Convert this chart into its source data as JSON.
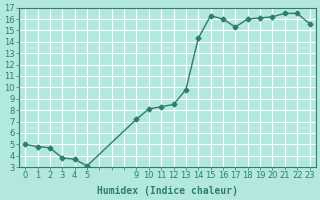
{
  "x": [
    0,
    1,
    2,
    3,
    4,
    5,
    9,
    10,
    11,
    12,
    13,
    14,
    15,
    16,
    17,
    18,
    19,
    20,
    21,
    22,
    23
  ],
  "y": [
    5.0,
    4.8,
    4.7,
    3.8,
    3.7,
    3.1,
    7.2,
    8.1,
    8.3,
    8.5,
    9.8,
    14.3,
    16.3,
    16.0,
    15.3,
    16.0,
    16.1,
    16.2,
    16.5,
    16.5,
    15.6
  ],
  "xlabel": "Humidex (Indice chaleur)",
  "ylim": [
    3,
    17
  ],
  "xlim": [
    -0.5,
    23.5
  ],
  "line_color": "#2e7d6e",
  "bg_color": "#b2e8e0",
  "grid_color": "#ffffff"
}
